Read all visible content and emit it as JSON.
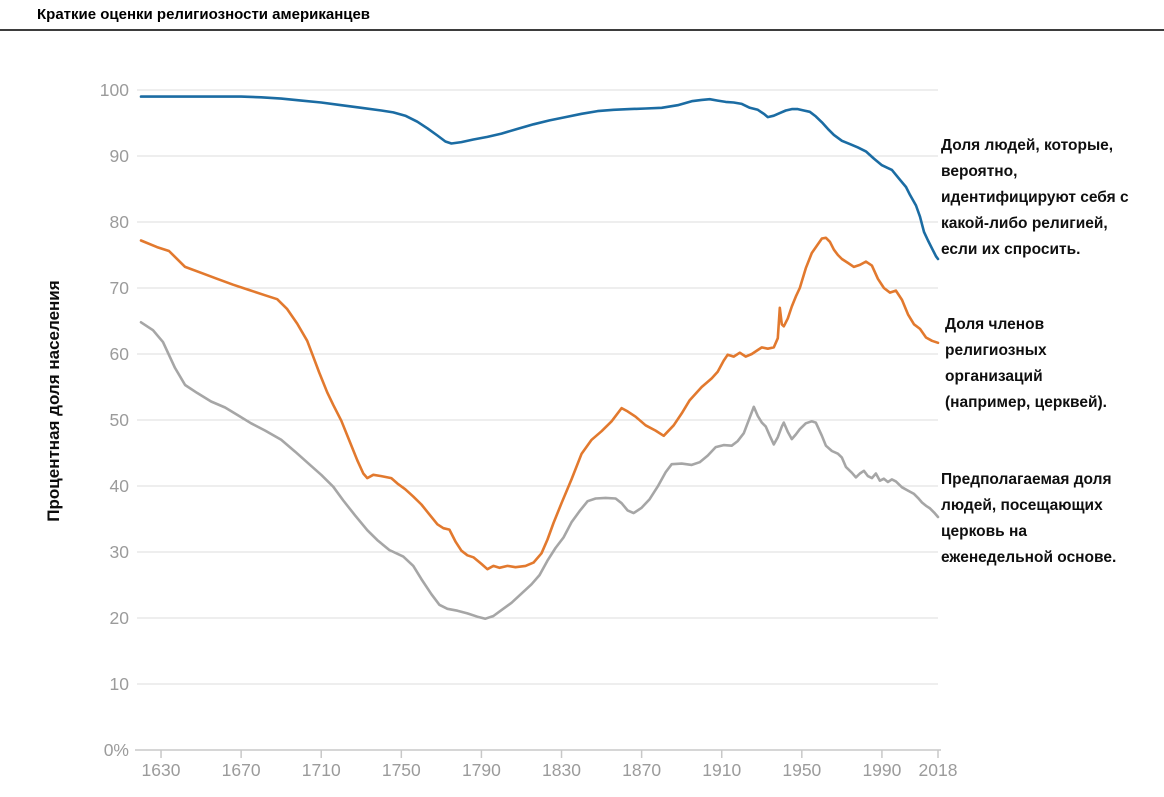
{
  "page": {
    "title": "Краткие оценки религиозности американцев"
  },
  "y_axis": {
    "label": "Процентная доля населения",
    "ticks": [
      "100",
      "90",
      "80",
      "70",
      "60",
      "50",
      "40",
      "30",
      "20",
      "10",
      "0%"
    ]
  },
  "x_axis": {
    "ticks": [
      "1630",
      "1670",
      "1710",
      "1750",
      "1790",
      "1830",
      "1870",
      "1910",
      "1950",
      "1990",
      "2018"
    ]
  },
  "colors": {
    "identification_line": "#1b6ca3",
    "membership_line": "#e2792e",
    "attendance_line": "#a6a6a6",
    "gridline": "#dcdcdc",
    "axis_baseline": "#c8c8c8",
    "tick_text": "#9b9b9b",
    "title_rule": "#3d3d3d"
  },
  "chart_data": {
    "type": "line",
    "title": "Краткие оценки религиозности американцев",
    "ylabel": "Процентная доля населения",
    "xlabel": "",
    "x_range": [
      1620,
      2018
    ],
    "ylim": [
      0,
      100
    ],
    "y_tick_step": 10,
    "grid": "horizontal",
    "legend_position": "right-annotations",
    "series": [
      {
        "id": "identification",
        "label": "Доля людей, которые, вероятно, идентифицируют себя с какой-либо религией, если их спросить.",
        "color": "#1b6ca3",
        "points": [
          [
            1620,
            99
          ],
          [
            1650,
            99
          ],
          [
            1670,
            99
          ],
          [
            1680,
            98.9
          ],
          [
            1690,
            98.7
          ],
          [
            1700,
            98.4
          ],
          [
            1710,
            98.1
          ],
          [
            1720,
            97.7
          ],
          [
            1730,
            97.3
          ],
          [
            1740,
            96.9
          ],
          [
            1746,
            96.6
          ],
          [
            1752,
            96.1
          ],
          [
            1758,
            95.2
          ],
          [
            1763,
            94.2
          ],
          [
            1768,
            93.1
          ],
          [
            1772,
            92.2
          ],
          [
            1775,
            91.9
          ],
          [
            1780,
            92.1
          ],
          [
            1786,
            92.5
          ],
          [
            1793,
            92.9
          ],
          [
            1800,
            93.4
          ],
          [
            1808,
            94.1
          ],
          [
            1816,
            94.8
          ],
          [
            1824,
            95.4
          ],
          [
            1832,
            95.9
          ],
          [
            1840,
            96.4
          ],
          [
            1848,
            96.8
          ],
          [
            1856,
            97
          ],
          [
            1864,
            97.1
          ],
          [
            1872,
            97.2
          ],
          [
            1880,
            97.3
          ],
          [
            1888,
            97.7
          ],
          [
            1895,
            98.3
          ],
          [
            1900,
            98.5
          ],
          [
            1904,
            98.6
          ],
          [
            1908,
            98.4
          ],
          [
            1912,
            98.2
          ],
          [
            1916,
            98.1
          ],
          [
            1920,
            97.9
          ],
          [
            1924,
            97.3
          ],
          [
            1928,
            97
          ],
          [
            1931,
            96.4
          ],
          [
            1933,
            95.9
          ],
          [
            1936,
            96.1
          ],
          [
            1939,
            96.5
          ],
          [
            1942,
            96.9
          ],
          [
            1945,
            97.1
          ],
          [
            1948,
            97.1
          ],
          [
            1951,
            96.9
          ],
          [
            1954,
            96.7
          ],
          [
            1957,
            96
          ],
          [
            1960,
            95.1
          ],
          [
            1963,
            94.1
          ],
          [
            1966,
            93.2
          ],
          [
            1970,
            92.3
          ],
          [
            1974,
            91.8
          ],
          [
            1978,
            91.3
          ],
          [
            1982,
            90.7
          ],
          [
            1986,
            89.6
          ],
          [
            1990,
            88.6
          ],
          [
            1995,
            87.9
          ],
          [
            1999,
            86.4
          ],
          [
            2002,
            85.3
          ],
          [
            2004,
            84.1
          ],
          [
            2007,
            82.5
          ],
          [
            2009,
            80.8
          ],
          [
            2011,
            78.5
          ],
          [
            2013,
            77.2
          ],
          [
            2015,
            76
          ],
          [
            2017,
            74.8
          ],
          [
            2018,
            74.4
          ]
        ]
      },
      {
        "id": "membership",
        "label": "Доля членов религиозных организаций (например, церквей).",
        "color": "#e2792e",
        "points": [
          [
            1620,
            77.2
          ],
          [
            1628,
            76.2
          ],
          [
            1634,
            75.6
          ],
          [
            1642,
            73.2
          ],
          [
            1650,
            72.3
          ],
          [
            1658,
            71.4
          ],
          [
            1666,
            70.5
          ],
          [
            1674,
            69.7
          ],
          [
            1682,
            68.9
          ],
          [
            1688,
            68.3
          ],
          [
            1693,
            66.8
          ],
          [
            1698,
            64.6
          ],
          [
            1703,
            62
          ],
          [
            1706,
            59.6
          ],
          [
            1709,
            57.2
          ],
          [
            1713,
            54.2
          ],
          [
            1716,
            52.3
          ],
          [
            1720,
            49.9
          ],
          [
            1724,
            46.9
          ],
          [
            1728,
            43.9
          ],
          [
            1731,
            41.9
          ],
          [
            1733,
            41.2
          ],
          [
            1736,
            41.7
          ],
          [
            1740,
            41.5
          ],
          [
            1745,
            41.2
          ],
          [
            1748,
            40.4
          ],
          [
            1752,
            39.5
          ],
          [
            1756,
            38.4
          ],
          [
            1760,
            37.2
          ],
          [
            1764,
            35.7
          ],
          [
            1768,
            34.2
          ],
          [
            1771,
            33.6
          ],
          [
            1774,
            33.4
          ],
          [
            1777,
            31.6
          ],
          [
            1780,
            30.2
          ],
          [
            1783,
            29.5
          ],
          [
            1786,
            29.2
          ],
          [
            1790,
            28.2
          ],
          [
            1793,
            27.4
          ],
          [
            1796,
            27.9
          ],
          [
            1799,
            27.6
          ],
          [
            1803,
            27.9
          ],
          [
            1807,
            27.7
          ],
          [
            1812,
            27.9
          ],
          [
            1816,
            28.4
          ],
          [
            1820,
            29.8
          ],
          [
            1823,
            31.9
          ],
          [
            1826,
            34.4
          ],
          [
            1830,
            37.4
          ],
          [
            1835,
            41
          ],
          [
            1840,
            44.9
          ],
          [
            1845,
            47
          ],
          [
            1850,
            48.3
          ],
          [
            1855,
            49.8
          ],
          [
            1860,
            51.8
          ],
          [
            1863,
            51.3
          ],
          [
            1867,
            50.5
          ],
          [
            1872,
            49.2
          ],
          [
            1877,
            48.4
          ],
          [
            1881,
            47.6
          ],
          [
            1886,
            49.2
          ],
          [
            1890,
            51
          ],
          [
            1894,
            53
          ],
          [
            1900,
            55
          ],
          [
            1905,
            56.3
          ],
          [
            1908,
            57.3
          ],
          [
            1911,
            59
          ],
          [
            1913,
            59.9
          ],
          [
            1916,
            59.6
          ],
          [
            1919,
            60.2
          ],
          [
            1922,
            59.6
          ],
          [
            1925,
            60
          ],
          [
            1928,
            60.6
          ],
          [
            1930,
            61
          ],
          [
            1933,
            60.8
          ],
          [
            1936,
            61
          ],
          [
            1938,
            62.4
          ],
          [
            1939,
            67
          ],
          [
            1940,
            64.5
          ],
          [
            1941,
            64.2
          ],
          [
            1943,
            65.4
          ],
          [
            1945,
            67.2
          ],
          [
            1947,
            68.7
          ],
          [
            1949,
            70
          ],
          [
            1952,
            73
          ],
          [
            1955,
            75.3
          ],
          [
            1958,
            76.6
          ],
          [
            1960,
            77.5
          ],
          [
            1962,
            77.6
          ],
          [
            1964,
            77
          ],
          [
            1966,
            75.8
          ],
          [
            1968,
            75
          ],
          [
            1970,
            74.4
          ],
          [
            1973,
            73.8
          ],
          [
            1976,
            73.2
          ],
          [
            1979,
            73.5
          ],
          [
            1982,
            74
          ],
          [
            1985,
            73.4
          ],
          [
            1988,
            71.4
          ],
          [
            1991,
            70
          ],
          [
            1994,
            69.3
          ],
          [
            1997,
            69.6
          ],
          [
            2000,
            68.2
          ],
          [
            2003,
            66
          ],
          [
            2006,
            64.5
          ],
          [
            2009,
            63.8
          ],
          [
            2012,
            62.5
          ],
          [
            2015,
            62
          ],
          [
            2018,
            61.7
          ]
        ]
      },
      {
        "id": "attendance",
        "label": "Предполагаемая доля людей, посещающих церковь на еженедельной основе.",
        "color": "#a6a6a6",
        "points": [
          [
            1620,
            64.8
          ],
          [
            1626,
            63.6
          ],
          [
            1631,
            61.8
          ],
          [
            1637,
            57.9
          ],
          [
            1642,
            55.3
          ],
          [
            1648,
            54.1
          ],
          [
            1655,
            52.8
          ],
          [
            1662,
            51.9
          ],
          [
            1668,
            50.8
          ],
          [
            1675,
            49.5
          ],
          [
            1682,
            48.4
          ],
          [
            1690,
            47
          ],
          [
            1697,
            45.2
          ],
          [
            1704,
            43.3
          ],
          [
            1710,
            41.7
          ],
          [
            1716,
            39.9
          ],
          [
            1721,
            37.8
          ],
          [
            1727,
            35.5
          ],
          [
            1733,
            33.3
          ],
          [
            1738,
            31.8
          ],
          [
            1744,
            30.3
          ],
          [
            1751,
            29.3
          ],
          [
            1756,
            27.9
          ],
          [
            1760,
            25.9
          ],
          [
            1765,
            23.6
          ],
          [
            1769,
            22
          ],
          [
            1773,
            21.4
          ],
          [
            1778,
            21.1
          ],
          [
            1783,
            20.7
          ],
          [
            1788,
            20.2
          ],
          [
            1792,
            19.9
          ],
          [
            1796,
            20.3
          ],
          [
            1800,
            21.2
          ],
          [
            1805,
            22.3
          ],
          [
            1810,
            23.7
          ],
          [
            1815,
            25.1
          ],
          [
            1819,
            26.5
          ],
          [
            1823,
            28.7
          ],
          [
            1827,
            30.6
          ],
          [
            1831,
            32.2
          ],
          [
            1835,
            34.5
          ],
          [
            1839,
            36.2
          ],
          [
            1843,
            37.7
          ],
          [
            1847,
            38.1
          ],
          [
            1852,
            38.2
          ],
          [
            1857,
            38.1
          ],
          [
            1860,
            37.4
          ],
          [
            1863,
            36.3
          ],
          [
            1866,
            35.9
          ],
          [
            1870,
            36.7
          ],
          [
            1874,
            38
          ],
          [
            1878,
            39.9
          ],
          [
            1882,
            42.1
          ],
          [
            1885,
            43.3
          ],
          [
            1890,
            43.4
          ],
          [
            1895,
            43.2
          ],
          [
            1899,
            43.6
          ],
          [
            1903,
            44.6
          ],
          [
            1907,
            45.9
          ],
          [
            1911,
            46.2
          ],
          [
            1915,
            46.1
          ],
          [
            1918,
            46.8
          ],
          [
            1921,
            48
          ],
          [
            1924,
            50.4
          ],
          [
            1926,
            52
          ],
          [
            1928,
            50.6
          ],
          [
            1930,
            49.6
          ],
          [
            1932,
            49
          ],
          [
            1934,
            47.6
          ],
          [
            1936,
            46.3
          ],
          [
            1938,
            47.4
          ],
          [
            1940,
            49
          ],
          [
            1941,
            49.6
          ],
          [
            1943,
            48.2
          ],
          [
            1945,
            47.1
          ],
          [
            1947,
            47.8
          ],
          [
            1949,
            48.6
          ],
          [
            1952,
            49.5
          ],
          [
            1955,
            49.8
          ],
          [
            1957,
            49.6
          ],
          [
            1960,
            47.6
          ],
          [
            1962,
            46.1
          ],
          [
            1965,
            45.3
          ],
          [
            1968,
            44.9
          ],
          [
            1970,
            44.3
          ],
          [
            1972,
            42.9
          ],
          [
            1975,
            42
          ],
          [
            1977,
            41.3
          ],
          [
            1979,
            41.9
          ],
          [
            1981,
            42.3
          ],
          [
            1983,
            41.5
          ],
          [
            1985,
            41.2
          ],
          [
            1987,
            41.9
          ],
          [
            1989,
            40.8
          ],
          [
            1991,
            41.1
          ],
          [
            1993,
            40.6
          ],
          [
            1995,
            41
          ],
          [
            1997,
            40.7
          ],
          [
            2000,
            39.8
          ],
          [
            2003,
            39.3
          ],
          [
            2006,
            38.8
          ],
          [
            2008,
            38.2
          ],
          [
            2010,
            37.5
          ],
          [
            2012,
            37
          ],
          [
            2014,
            36.6
          ],
          [
            2016,
            36
          ],
          [
            2018,
            35.3
          ]
        ]
      }
    ]
  }
}
